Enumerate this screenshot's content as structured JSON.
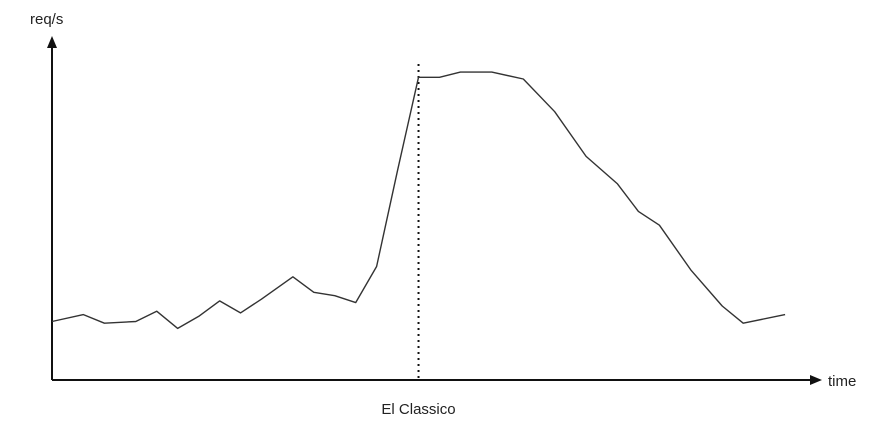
{
  "chart_data": {
    "type": "line",
    "title": "",
    "ylabel": "req/s",
    "xlabel": "time",
    "xlim": [
      0,
      36
    ],
    "ylim": [
      0,
      100
    ],
    "grid": false,
    "legend": "none",
    "series": [
      {
        "color": "#333333",
        "x": [
          0,
          1.5,
          2.5,
          4,
          5,
          6,
          7,
          8,
          9,
          10,
          11.5,
          12.5,
          13.5,
          14.5,
          15.5,
          16.5,
          17.5,
          18.5,
          19.5,
          21,
          22.5,
          24,
          25.5,
          27,
          28,
          29,
          30.5,
          32,
          33,
          35
        ],
        "y": [
          17,
          19,
          16.5,
          17,
          20,
          15,
          18.5,
          23,
          19.5,
          23.5,
          30,
          25.5,
          24.5,
          22.5,
          33,
          61,
          88,
          88,
          89.5,
          89.5,
          87.5,
          78,
          65,
          57,
          49,
          45,
          32,
          21.5,
          16.5,
          19
        ]
      }
    ],
    "annotations": [
      {
        "label": "El Classico",
        "x": 17.5,
        "style": "dotted-vertical"
      }
    ]
  }
}
